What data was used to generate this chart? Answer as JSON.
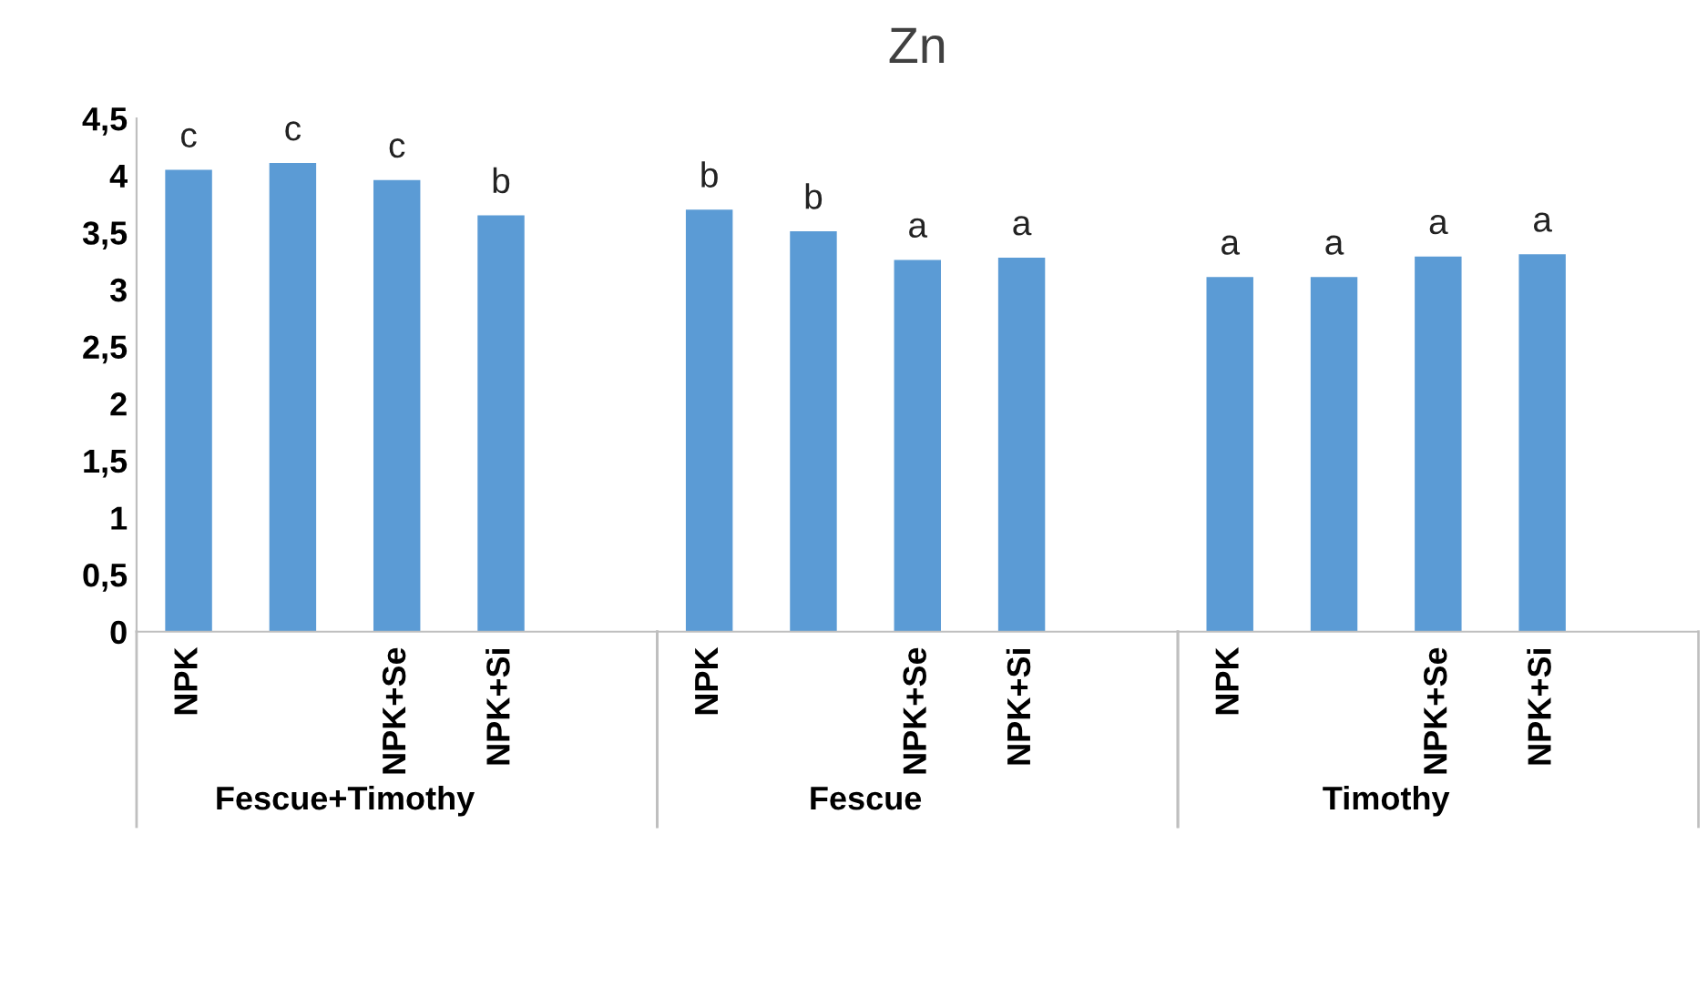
{
  "chart_data": {
    "type": "bar",
    "title": "Zn",
    "categories": [
      "NPK",
      null,
      "NPK+Se",
      "NPK+Si",
      "NPK",
      null,
      "NPK+Se",
      "NPK+Si",
      "NPK",
      null,
      "NPK+Se",
      "NPK+Si"
    ],
    "values": [
      4.05,
      4.11,
      3.96,
      3.65,
      3.7,
      3.51,
      3.26,
      3.28,
      3.11,
      3.11,
      3.29,
      3.31
    ],
    "value_labels": [
      "c",
      "c",
      "c",
      "b",
      "b",
      "b",
      "a",
      "a",
      "a",
      "a",
      "a",
      "a"
    ],
    "color": "#5b9bd5",
    "ylim": [
      0,
      4.5
    ],
    "yticks": [
      0,
      {
        "value": 0.5,
        "label": "0,5"
      },
      1,
      {
        "value": 1.5,
        "label": "1,5"
      },
      2,
      {
        "value": 2.5,
        "label": "2,5"
      },
      3,
      {
        "value": 3.5,
        "label": "3,5"
      },
      4,
      {
        "value": 4.5,
        "label": "4,5"
      }
    ],
    "annotations": [
      "Fescue+Timothy",
      "Fescue",
      "Timothy"
    ],
    "grid": false,
    "legend": false
  }
}
